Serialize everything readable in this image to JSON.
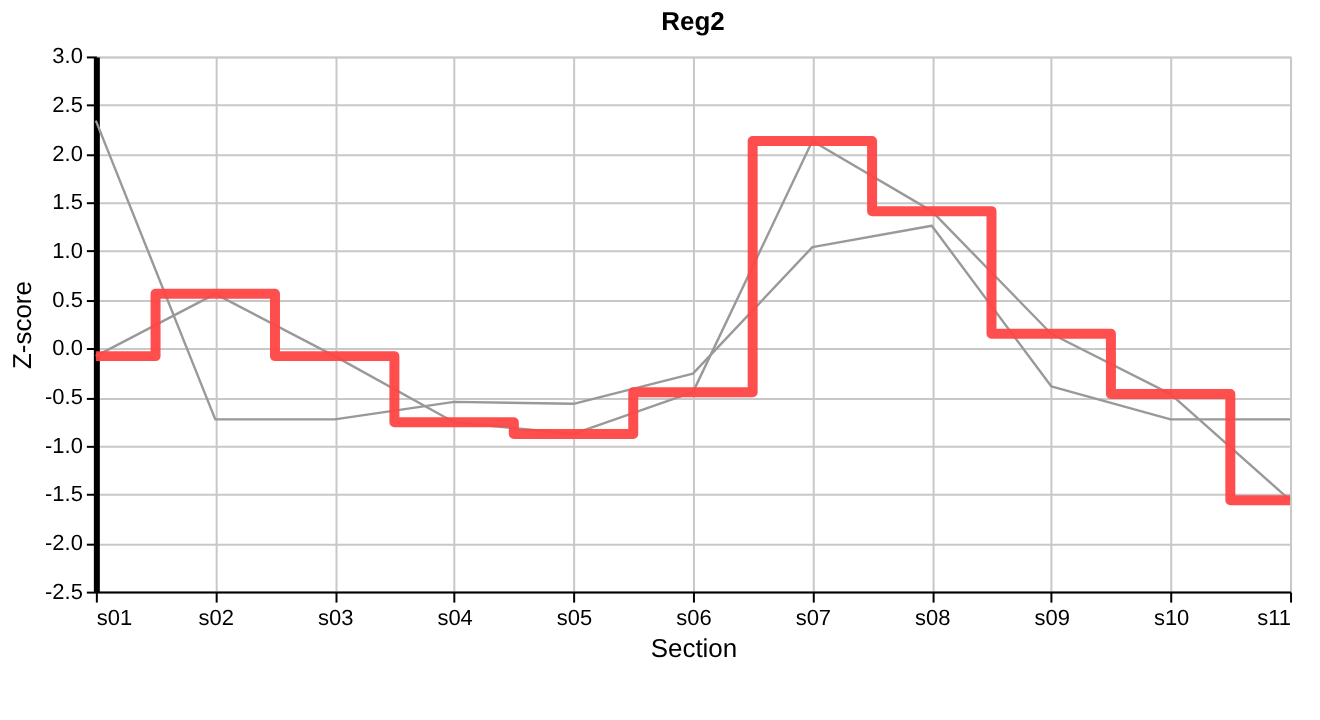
{
  "chart_data": {
    "type": "line",
    "title": "Reg2",
    "xlabel": "Section",
    "ylabel": "Z-score",
    "categories": [
      "s01",
      "s02",
      "s03",
      "s04",
      "s05",
      "s06",
      "s07",
      "s08",
      "s09",
      "s10",
      "s11"
    ],
    "series": [
      {
        "type": "line",
        "color": "#999999",
        "values": [
          2.34,
          -0.73,
          -0.73,
          -0.55,
          -0.57,
          -0.26,
          1.04,
          1.26,
          -0.39,
          -0.73,
          -0.73
        ]
      },
      {
        "type": "line",
        "color": "#999999",
        "values": [
          -0.08,
          0.56,
          -0.08,
          -0.76,
          -0.88,
          -0.45,
          2.13,
          1.41,
          0.15,
          -0.47,
          -1.56
        ]
      },
      {
        "type": "step",
        "color": "#ff4444",
        "values": [
          -0.08,
          0.56,
          -0.08,
          -0.76,
          -0.88,
          -0.45,
          2.13,
          1.41,
          0.15,
          -0.47,
          -1.56
        ]
      }
    ],
    "ylim": [
      -2.5,
      3.0
    ],
    "yticks": [
      {
        "value": -2.5,
        "label": "-2.5"
      },
      {
        "value": -2,
        "label": "-2.0"
      },
      {
        "value": -1.5,
        "label": "-1.5"
      },
      {
        "value": -1,
        "label": "-1.0"
      },
      {
        "value": -0.5,
        "label": "-0.5"
      },
      {
        "value": 0,
        "label": "0.0"
      },
      {
        "value": 0.5,
        "label": "0.5"
      },
      {
        "value": 1,
        "label": "1.0"
      },
      {
        "value": 1.5,
        "label": "1.5"
      },
      {
        "value": 2,
        "label": "2.0"
      },
      {
        "value": 2.5,
        "label": "2.5"
      },
      {
        "value": 3,
        "label": "3.0"
      }
    ],
    "grid": true,
    "legend": false,
    "marker": "none"
  }
}
